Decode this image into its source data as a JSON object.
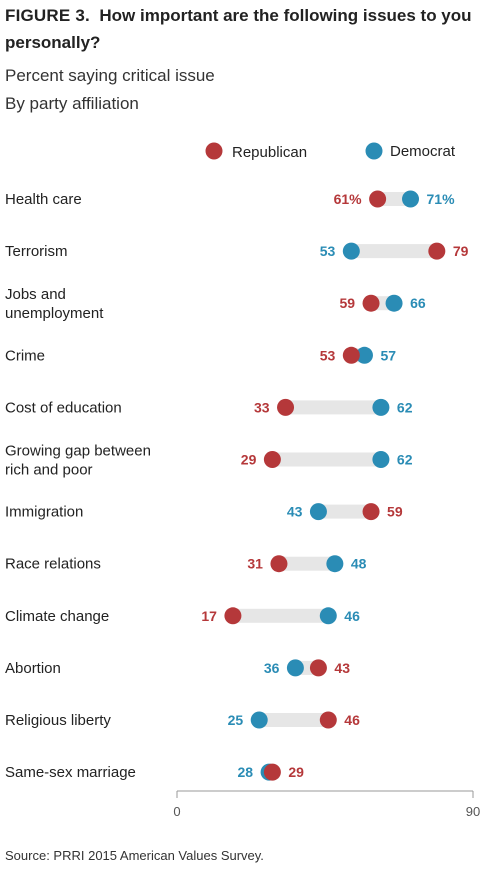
{
  "figure_label": "FIGURE 3.",
  "title": "How important are the following issues to you personally?",
  "subtitle_1": "Percent saying critical issue",
  "subtitle_2": "By party affiliation",
  "source": "Source: PRRI 2015 American Values Survey.",
  "colors": {
    "republican": "#b5383a",
    "democrat": "#2a8cb5",
    "range": "#e6e6e6",
    "axis": "#9a9a9a",
    "label": "#222222"
  },
  "chart_data": {
    "type": "dot",
    "xlim": [
      0,
      90
    ],
    "x_ticks": [
      "0",
      "90"
    ],
    "legend": [
      "Republican",
      "Democrat"
    ],
    "legend_position": "top-right",
    "categories": [
      "Health care",
      "Terrorism",
      "Jobs and unemployment",
      "Crime",
      "Cost of education",
      "Growing gap between rich and poor",
      "Immigration",
      "Race relations",
      "Climate change",
      "Abortion",
      "Religious liberty",
      "Same-sex marriage"
    ],
    "category_lines": [
      [
        "Health care"
      ],
      [
        "Terrorism"
      ],
      [
        "Jobs and",
        "unemployment"
      ],
      [
        "Crime"
      ],
      [
        "Cost of education"
      ],
      [
        "Growing gap between",
        "rich and poor"
      ],
      [
        "Immigration"
      ],
      [
        "Race relations"
      ],
      [
        "Climate change"
      ],
      [
        "Abortion"
      ],
      [
        "Religious liberty"
      ],
      [
        "Same-sex marriage"
      ]
    ],
    "series": [
      {
        "name": "Republican",
        "values": [
          61,
          79,
          59,
          53,
          33,
          29,
          59,
          31,
          17,
          43,
          46,
          29
        ],
        "labels": [
          "61%",
          "79",
          "59",
          "53",
          "33",
          "29",
          "59",
          "31",
          "17",
          "43",
          "46",
          "29"
        ]
      },
      {
        "name": "Democrat",
        "values": [
          71,
          53,
          66,
          57,
          62,
          62,
          43,
          48,
          46,
          36,
          25,
          28
        ],
        "labels": [
          "71%",
          "53",
          "66",
          "57",
          "62",
          "62",
          "43",
          "48",
          "46",
          "36",
          "25",
          "28"
        ]
      }
    ]
  }
}
